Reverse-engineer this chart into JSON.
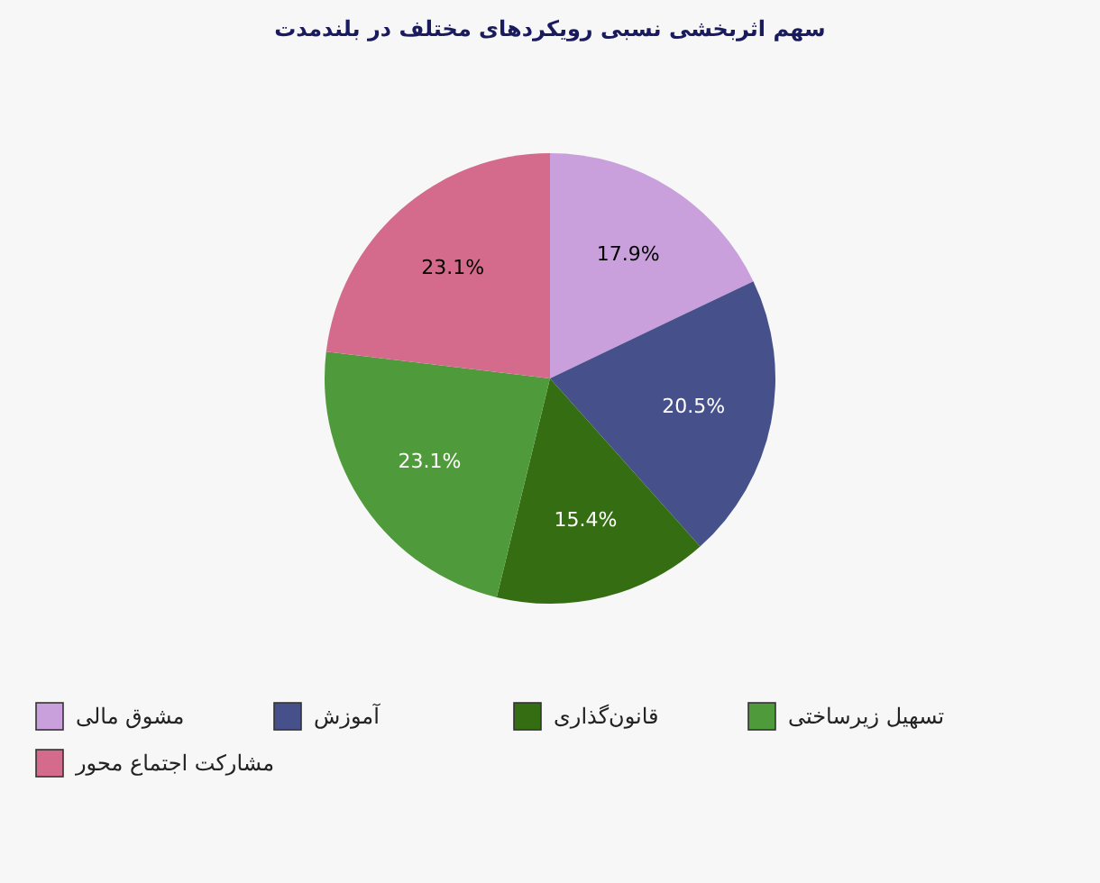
{
  "chart_data": {
    "type": "pie",
    "title": "سهم اثربخشی نسبی رویکردهای مختلف در بلندمدت",
    "categories": [
      "مشوق مالی",
      "آموزش",
      "قانون‌گذاری",
      "تسهیل زیرساختی",
      "مشارکت اجتماع محور"
    ],
    "values": [
      17.9,
      20.5,
      15.4,
      23.1,
      23.1
    ],
    "colors": [
      "#c9a0dc",
      "#46508a",
      "#356d12",
      "#4f9a3a",
      "#d46a8c"
    ],
    "value_labels": [
      "17.9%",
      "20.5%",
      "15.4%",
      "23.1%",
      "23.1%"
    ],
    "legend": "bottom"
  }
}
